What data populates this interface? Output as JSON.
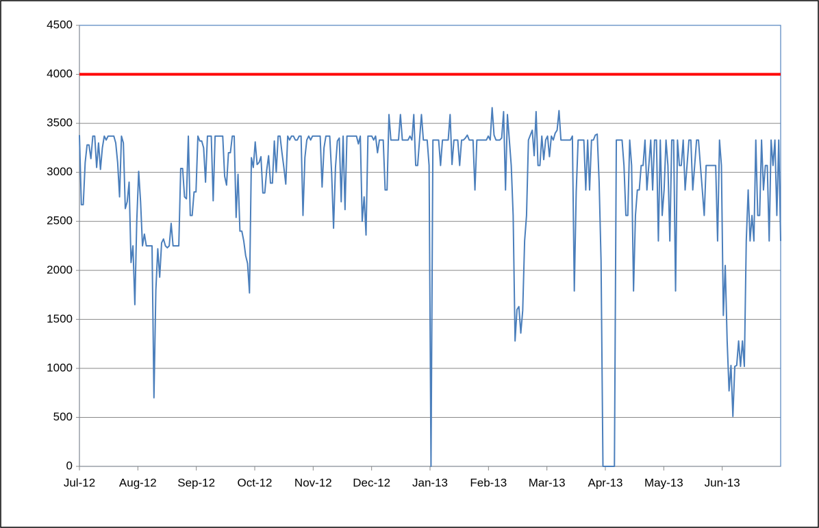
{
  "chart_data": {
    "type": "line",
    "xtick_labels": [
      "Jul-12",
      "Aug-12",
      "Sep-12",
      "Oct-12",
      "Nov-12",
      "Dec-12",
      "Jan-13",
      "Feb-13",
      "Mar-13",
      "Apr-13",
      "May-13",
      "Jun-13"
    ],
    "ylim": [
      0,
      4500
    ],
    "yticks": [
      0,
      500,
      1000,
      1500,
      2000,
      2500,
      3000,
      3500,
      4000,
      4500
    ],
    "grid": true,
    "reference_line": {
      "value": 4000,
      "color": "#ff0000"
    },
    "color": "#4a7ebb",
    "values": [
      3380,
      2670,
      2670,
      3100,
      3280,
      3280,
      3140,
      3370,
      3370,
      3050,
      3300,
      3030,
      3250,
      3370,
      3330,
      3370,
      3370,
      3370,
      3370,
      3300,
      3100,
      2750,
      3370,
      3300,
      2630,
      2700,
      2900,
      2080,
      2250,
      1650,
      2500,
      3010,
      2700,
      2250,
      2370,
      2250,
      2250,
      2250,
      2250,
      700,
      1800,
      2220,
      1930,
      2280,
      2320,
      2250,
      2230,
      2250,
      2480,
      2250,
      2250,
      2250,
      2250,
      3040,
      3040,
      2750,
      2730,
      3370,
      2560,
      2560,
      2800,
      2800,
      3370,
      3320,
      3320,
      3250,
      2900,
      3370,
      3370,
      3370,
      2710,
      3370,
      3370,
      3370,
      3370,
      3370,
      2960,
      2870,
      3200,
      3200,
      3370,
      3370,
      2540,
      2980,
      2400,
      2400,
      2300,
      2150,
      2070,
      1770,
      3150,
      3050,
      3310,
      3080,
      3100,
      3160,
      2790,
      2790,
      3020,
      3170,
      2890,
      2890,
      3320,
      3000,
      3370,
      3370,
      3200,
      3050,
      2880,
      3370,
      3330,
      3370,
      3370,
      3330,
      3330,
      3370,
      3370,
      2560,
      3150,
      3330,
      3370,
      3330,
      3370,
      3370,
      3370,
      3370,
      3370,
      2850,
      3250,
      3370,
      3370,
      3370,
      2990,
      2430,
      3050,
      3320,
      3350,
      2700,
      3370,
      2620,
      3370,
      3370,
      3370,
      3370,
      3370,
      3370,
      3290,
      3370,
      2500,
      2750,
      2360,
      3370,
      3370,
      3370,
      3330,
      3370,
      3200,
      3330,
      3330,
      3330,
      2820,
      2820,
      3590,
      3330,
      3330,
      3330,
      3330,
      3330,
      3590,
      3330,
      3330,
      3330,
      3330,
      3370,
      3330,
      3590,
      3070,
      3070,
      3330,
      3590,
      3330,
      3330,
      3330,
      3070,
      0,
      3330,
      3330,
      3330,
      3330,
      3070,
      3330,
      3330,
      3330,
      3330,
      3590,
      3080,
      3330,
      3330,
      3330,
      3070,
      3330,
      3330,
      3350,
      3380,
      3330,
      3330,
      3330,
      2820,
      3330,
      3330,
      3330,
      3330,
      3330,
      3330,
      3370,
      3330,
      3660,
      3380,
      3330,
      3330,
      3330,
      3350,
      3620,
      2820,
      3590,
      3330,
      3070,
      2560,
      1280,
      1600,
      1630,
      1360,
      1590,
      2300,
      2560,
      3330,
      3380,
      3430,
      3170,
      3620,
      3070,
      3070,
      3370,
      3130,
      3330,
      3370,
      3160,
      3370,
      3330,
      3400,
      3430,
      3630,
      3330,
      3330,
      3330,
      3330,
      3330,
      3330,
      3370,
      1790,
      2800,
      3330,
      3330,
      3330,
      3330,
      2820,
      3330,
      2820,
      3330,
      3330,
      3380,
      3390,
      2900,
      2100,
      0,
      0,
      0,
      0,
      0,
      0,
      0,
      3330,
      3330,
      3330,
      3330,
      3070,
      2560,
      2560,
      3330,
      3070,
      1790,
      2560,
      2820,
      2820,
      3070,
      3070,
      3330,
      2820,
      3070,
      3330,
      2820,
      3330,
      3330,
      2300,
      3330,
      2560,
      2820,
      3330,
      3070,
      2300,
      3330,
      3330,
      1790,
      3330,
      3070,
      3070,
      3330,
      2820,
      3070,
      3330,
      3330,
      2820,
      3070,
      3330,
      3330,
      3070,
      2820,
      2560,
      3070,
      3070,
      3070,
      3070,
      3070,
      3070,
      2300,
      3330,
      3070,
      1540,
      2050,
      1280,
      770,
      1030,
      510,
      1020,
      1030,
      1280,
      1020,
      1280,
      1020,
      2300,
      2820,
      2300,
      2560,
      2300,
      3330,
      2560,
      2560,
      3330,
      2820,
      3070,
      3070,
      2300,
      3330,
      3070,
      3330,
      2560,
      3330,
      2300
    ]
  }
}
